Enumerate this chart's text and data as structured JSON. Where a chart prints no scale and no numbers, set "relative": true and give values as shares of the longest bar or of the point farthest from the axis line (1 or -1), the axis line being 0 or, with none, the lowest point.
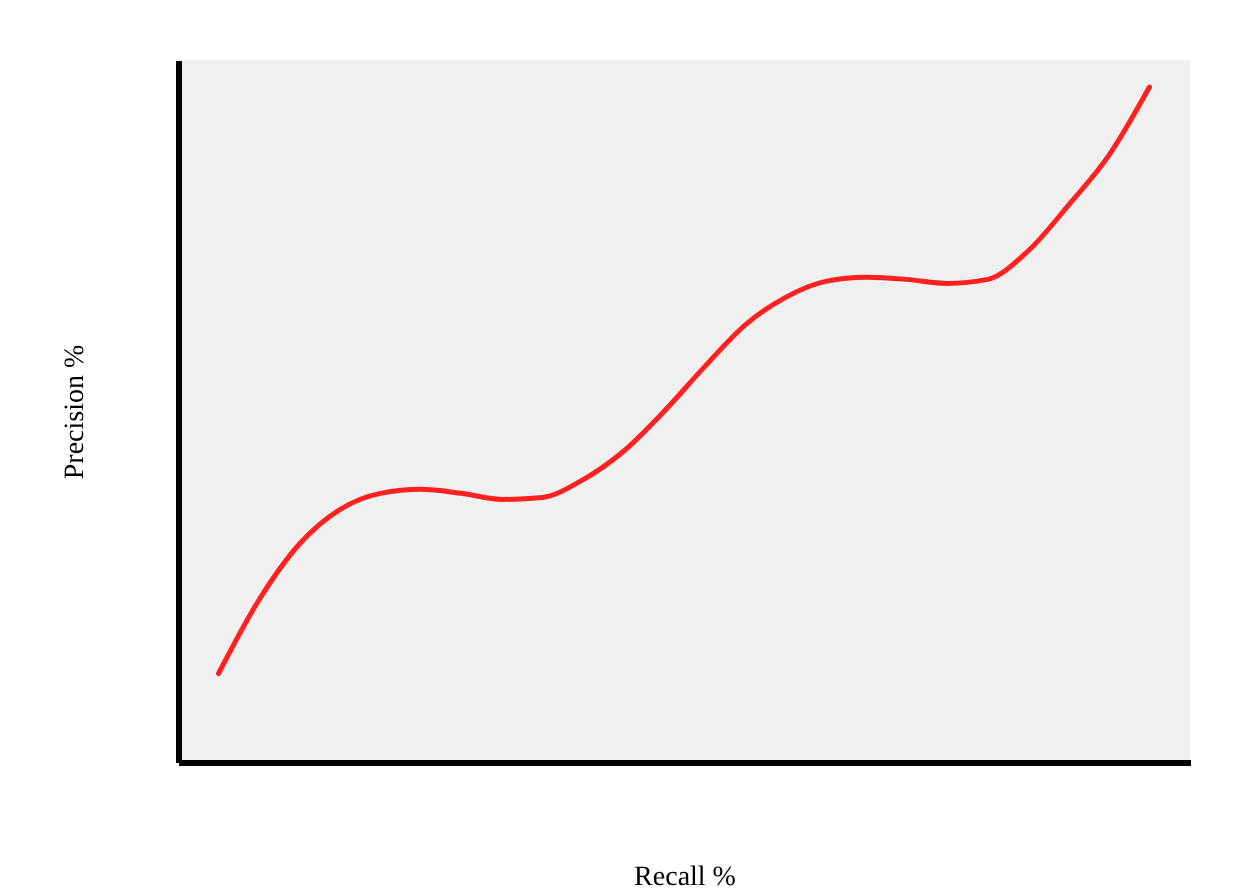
{
  "chart_data": {
    "type": "line",
    "xlabel": "Recall %",
    "ylabel": "Precision %",
    "relative": true,
    "grid": false,
    "marker": "none",
    "line_style": "solid",
    "tick_labels": false,
    "categories": [
      null,
      null,
      null,
      null,
      null,
      null,
      null,
      null,
      null,
      null,
      null,
      null,
      null,
      null,
      null,
      null,
      null,
      null,
      null,
      null,
      null,
      null,
      null,
      null
    ],
    "series": [
      {
        "color": "#ff2020",
        "values": [
          0.131,
          0.24,
          0.323,
          0.374,
          0.398,
          0.404,
          0.398,
          0.389,
          0.392,
          0.418,
          0.46,
          0.519,
          0.585,
          0.647,
          0.688,
          0.712,
          0.718,
          0.715,
          0.709,
          0.715,
          0.757,
          0.825,
          0.899,
          1.0
        ]
      }
    ]
  }
}
